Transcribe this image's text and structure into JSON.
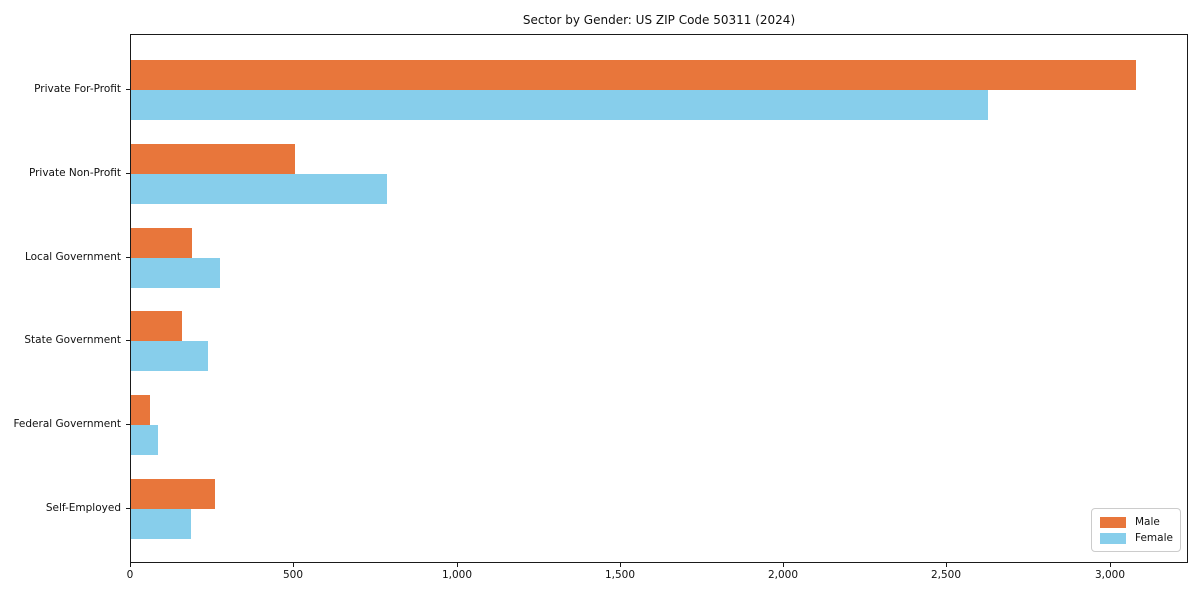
{
  "chart_data": {
    "type": "bar",
    "orientation": "horizontal",
    "title": "Sector by Gender: US ZIP Code 50311 (2024)",
    "categories": [
      "Private For-Profit",
      "Private Non-Profit",
      "Local Government",
      "State Government",
      "Federal Government",
      "Self-Employed"
    ],
    "series": [
      {
        "name": "Male",
        "color": "#e8763b",
        "values": [
          3078,
          502,
          187,
          156,
          58,
          257
        ]
      },
      {
        "name": "Female",
        "color": "#87ceeb",
        "values": [
          2625,
          784,
          272,
          236,
          83,
          184
        ]
      }
    ],
    "xlabel": "",
    "ylabel": "",
    "xlim": [
      0,
      3240
    ],
    "x_ticks": [
      0,
      500,
      1000,
      1500,
      2000,
      2500,
      3000
    ],
    "x_tick_labels": [
      "0",
      "500",
      "1,000",
      "1,500",
      "2,000",
      "2,500",
      "3,000"
    ],
    "grid": false,
    "legend_position": "lower right",
    "plot_border_color": "#1a1a1a",
    "background_color": "#ffffff"
  }
}
